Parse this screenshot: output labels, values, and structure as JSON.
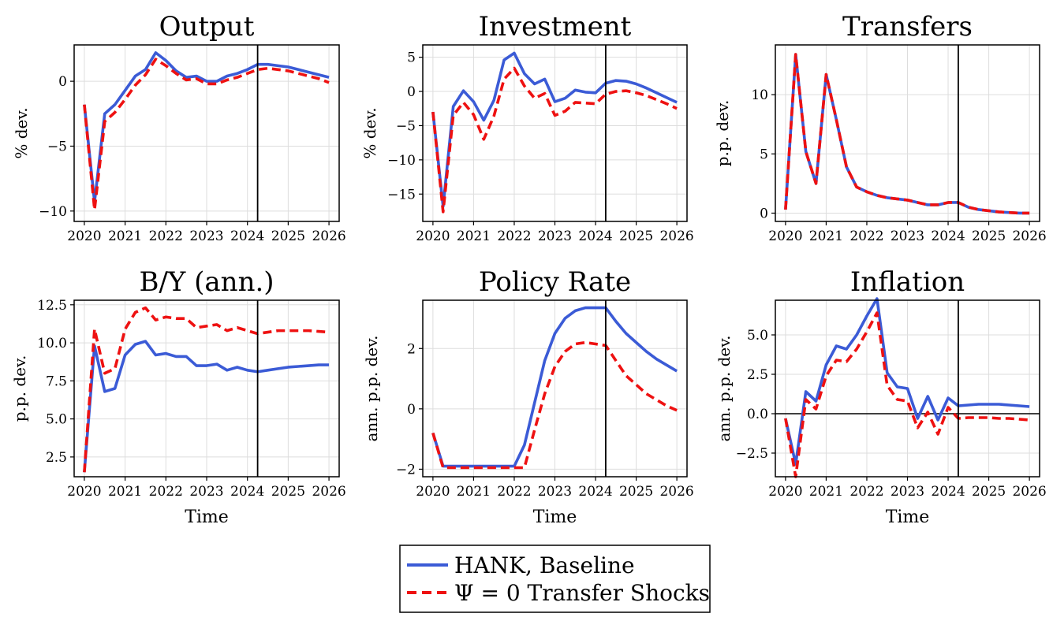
{
  "legend": {
    "baseline": "HANK, Baseline",
    "psi0": "Ψ = 0 Transfer Shocks"
  },
  "colors": {
    "baseline": "#3b5bd6",
    "psi0": "#ee1111",
    "axis": "#000000",
    "grid": "#dddddd"
  },
  "chart_data": [
    {
      "type": "line",
      "title": "Output",
      "xlabel": "",
      "ylabel": "% dev.",
      "xlim": [
        2019.75,
        2026.25
      ],
      "ylim": [
        -10.8,
        2.8
      ],
      "xticks": [
        2020,
        2021,
        2022,
        2023,
        2024,
        2025,
        2026
      ],
      "yticks": [
        -10,
        -5,
        0
      ],
      "ytick_labels": [
        "−10",
        "−5",
        "0"
      ],
      "vline": 2024.25,
      "hline": null,
      "grid": true,
      "x": [
        2020.0,
        2020.25,
        2020.5,
        2020.75,
        2021.0,
        2021.25,
        2021.5,
        2021.75,
        2022.0,
        2022.25,
        2022.5,
        2022.75,
        2023.0,
        2023.25,
        2023.5,
        2023.75,
        2024.0,
        2024.25,
        2024.5,
        2024.75,
        2025.0,
        2025.25,
        2025.5,
        2025.75,
        2026.0
      ],
      "series": [
        {
          "name": "HANK, Baseline",
          "style": "solid",
          "values": [
            -1.8,
            -9.3,
            -2.5,
            -1.8,
            -0.7,
            0.4,
            0.9,
            2.2,
            1.6,
            0.8,
            0.3,
            0.4,
            0.0,
            0.0,
            0.4,
            0.6,
            0.9,
            1.3,
            1.3,
            1.2,
            1.1,
            0.9,
            0.7,
            0.5,
            0.3
          ]
        },
        {
          "name": "Ψ = 0 Transfer Shocks",
          "style": "dashed",
          "values": [
            -1.8,
            -9.9,
            -3.1,
            -2.4,
            -1.4,
            -0.3,
            0.5,
            1.7,
            1.2,
            0.6,
            0.1,
            0.2,
            -0.2,
            -0.2,
            0.1,
            0.3,
            0.6,
            0.9,
            1.0,
            0.9,
            0.8,
            0.6,
            0.4,
            0.2,
            -0.1
          ]
        }
      ]
    },
    {
      "type": "line",
      "title": "Investment",
      "xlabel": "",
      "ylabel": "% dev.",
      "xlim": [
        2019.75,
        2026.25
      ],
      "ylim": [
        -19,
        6.8
      ],
      "xticks": [
        2020,
        2021,
        2022,
        2023,
        2024,
        2025,
        2026
      ],
      "yticks": [
        -15,
        -10,
        -5,
        0,
        5
      ],
      "ytick_labels": [
        "−15",
        "−10",
        "−5",
        "0",
        "5"
      ],
      "vline": 2024.25,
      "hline": null,
      "grid": true,
      "x": [
        2020.0,
        2020.25,
        2020.5,
        2020.75,
        2021.0,
        2021.25,
        2021.5,
        2021.75,
        2022.0,
        2022.25,
        2022.5,
        2022.75,
        2023.0,
        2023.25,
        2023.5,
        2023.75,
        2024.0,
        2024.25,
        2024.5,
        2024.75,
        2025.0,
        2025.25,
        2025.5,
        2025.75,
        2026.0
      ],
      "series": [
        {
          "name": "HANK, Baseline",
          "style": "solid",
          "values": [
            -3.0,
            -16.8,
            -2.2,
            0.1,
            -1.5,
            -4.2,
            -1.3,
            4.6,
            5.6,
            2.6,
            1.1,
            1.8,
            -1.5,
            -1.0,
            0.2,
            -0.1,
            -0.2,
            1.2,
            1.6,
            1.5,
            1.1,
            0.5,
            -0.2,
            -0.9,
            -1.6
          ]
        },
        {
          "name": "Ψ = 0 Transfer Shocks",
          "style": "dashed",
          "values": [
            -3.0,
            -17.6,
            -3.5,
            -1.6,
            -3.4,
            -7.0,
            -3.6,
            1.8,
            3.4,
            0.8,
            -1.0,
            -0.3,
            -3.5,
            -2.9,
            -1.6,
            -1.7,
            -1.8,
            -0.4,
            0.0,
            0.1,
            -0.2,
            -0.6,
            -1.2,
            -1.8,
            -2.5
          ]
        }
      ]
    },
    {
      "type": "line",
      "title": "Transfers",
      "xlabel": "",
      "ylabel": "p.p. dev.",
      "xlim": [
        2019.75,
        2026.25
      ],
      "ylim": [
        -0.7,
        14.2
      ],
      "xticks": [
        2020,
        2021,
        2022,
        2023,
        2024,
        2025,
        2026
      ],
      "yticks": [
        0,
        5,
        10
      ],
      "ytick_labels": [
        "0",
        "5",
        "10"
      ],
      "vline": 2024.25,
      "hline": null,
      "grid": true,
      "x": [
        2020.0,
        2020.25,
        2020.5,
        2020.75,
        2021.0,
        2021.25,
        2021.5,
        2021.75,
        2022.0,
        2022.25,
        2022.5,
        2022.75,
        2023.0,
        2023.25,
        2023.5,
        2023.75,
        2024.0,
        2024.25,
        2024.5,
        2024.75,
        2025.0,
        2025.25,
        2025.5,
        2025.75,
        2026.0
      ],
      "series": [
        {
          "name": "HANK, Baseline",
          "style": "solid",
          "values": [
            0.3,
            13.4,
            5.2,
            2.5,
            11.7,
            7.9,
            3.9,
            2.2,
            1.8,
            1.5,
            1.3,
            1.2,
            1.1,
            0.9,
            0.7,
            0.7,
            0.9,
            0.9,
            0.5,
            0.3,
            0.2,
            0.1,
            0.05,
            0.0,
            0.0
          ]
        },
        {
          "name": "Ψ = 0 Transfer Shocks",
          "style": "dashed",
          "values": [
            0.3,
            13.4,
            5.2,
            2.5,
            11.7,
            7.9,
            3.9,
            2.2,
            1.8,
            1.5,
            1.3,
            1.2,
            1.1,
            0.9,
            0.7,
            0.7,
            0.9,
            0.9,
            0.5,
            0.3,
            0.2,
            0.1,
            0.05,
            0.0,
            0.0
          ]
        }
      ]
    },
    {
      "type": "line",
      "title": "B/Y (ann.)",
      "xlabel": "Time",
      "ylabel": "p.p. dev.",
      "xlim": [
        2019.75,
        2026.25
      ],
      "ylim": [
        1.2,
        12.8
      ],
      "xticks": [
        2020,
        2021,
        2022,
        2023,
        2024,
        2025,
        2026
      ],
      "yticks": [
        2.5,
        5.0,
        7.5,
        10.0,
        12.5
      ],
      "ytick_labels": [
        "2.5",
        "5.0",
        "7.5",
        "10.0",
        "12.5"
      ],
      "vline": 2024.25,
      "hline": null,
      "grid": true,
      "x": [
        2020.0,
        2020.25,
        2020.5,
        2020.75,
        2021.0,
        2021.25,
        2021.5,
        2021.75,
        2022.0,
        2022.25,
        2022.5,
        2022.75,
        2023.0,
        2023.25,
        2023.5,
        2023.75,
        2024.0,
        2024.25,
        2024.5,
        2024.75,
        2025.0,
        2025.25,
        2025.5,
        2025.75,
        2026.0
      ],
      "series": [
        {
          "name": "HANK, Baseline",
          "style": "solid",
          "values": [
            1.5,
            9.8,
            6.8,
            7.0,
            9.2,
            9.9,
            10.1,
            9.2,
            9.3,
            9.1,
            9.1,
            8.5,
            8.5,
            8.6,
            8.2,
            8.4,
            8.2,
            8.1,
            8.2,
            8.3,
            8.4,
            8.45,
            8.5,
            8.55,
            8.55
          ]
        },
        {
          "name": "Ψ = 0 Transfer Shocks",
          "style": "dashed",
          "values": [
            1.5,
            10.9,
            8.0,
            8.3,
            10.9,
            12.0,
            12.3,
            11.5,
            11.7,
            11.6,
            11.6,
            11.0,
            11.1,
            11.2,
            10.8,
            11.0,
            10.8,
            10.6,
            10.7,
            10.8,
            10.8,
            10.8,
            10.8,
            10.75,
            10.7
          ]
        }
      ]
    },
    {
      "type": "line",
      "title": "Policy Rate",
      "xlabel": "Time",
      "ylabel": "ann. p.p. dev.",
      "xlim": [
        2019.75,
        2026.25
      ],
      "ylim": [
        -2.25,
        3.6
      ],
      "xticks": [
        2020,
        2021,
        2022,
        2023,
        2024,
        2025,
        2026
      ],
      "yticks": [
        -2,
        0,
        2
      ],
      "ytick_labels": [
        "−2",
        "0",
        "2"
      ],
      "vline": 2024.25,
      "hline": null,
      "grid": true,
      "x": [
        2020.0,
        2020.25,
        2020.5,
        2020.75,
        2021.0,
        2021.25,
        2021.5,
        2021.75,
        2022.0,
        2022.25,
        2022.5,
        2022.75,
        2023.0,
        2023.25,
        2023.5,
        2023.75,
        2024.0,
        2024.25,
        2024.5,
        2024.75,
        2025.0,
        2025.25,
        2025.5,
        2025.75,
        2026.0
      ],
      "series": [
        {
          "name": "HANK, Baseline",
          "style": "solid",
          "values": [
            -0.8,
            -1.9,
            -1.9,
            -1.9,
            -1.9,
            -1.9,
            -1.9,
            -1.9,
            -1.9,
            -1.2,
            0.2,
            1.6,
            2.5,
            3.0,
            3.25,
            3.35,
            3.35,
            3.35,
            2.9,
            2.5,
            2.2,
            1.9,
            1.65,
            1.45,
            1.25
          ]
        },
        {
          "name": "Ψ = 0 Transfer Shocks",
          "style": "dashed",
          "values": [
            -0.8,
            -1.95,
            -1.95,
            -1.95,
            -1.95,
            -1.95,
            -1.95,
            -1.95,
            -1.95,
            -1.95,
            -0.7,
            0.5,
            1.4,
            1.9,
            2.15,
            2.2,
            2.15,
            2.1,
            1.6,
            1.1,
            0.8,
            0.5,
            0.3,
            0.1,
            -0.05
          ]
        }
      ]
    },
    {
      "type": "line",
      "title": "Inflation",
      "xlabel": "Time",
      "ylabel": "ann. p.p. dev.",
      "xlim": [
        2019.75,
        2026.25
      ],
      "ylim": [
        -4.0,
        7.2
      ],
      "xticks": [
        2020,
        2021,
        2022,
        2023,
        2024,
        2025,
        2026
      ],
      "yticks": [
        -2.5,
        0.0,
        2.5,
        5.0
      ],
      "ytick_labels": [
        "−2.5",
        "0.0",
        "2.5",
        "5.0"
      ],
      "vline": 2024.25,
      "hline": 0,
      "grid": true,
      "x": [
        2020.0,
        2020.25,
        2020.5,
        2020.75,
        2021.0,
        2021.25,
        2021.5,
        2021.75,
        2022.0,
        2022.25,
        2022.5,
        2022.75,
        2023.0,
        2023.25,
        2023.5,
        2023.75,
        2024.0,
        2024.25,
        2024.5,
        2024.75,
        2025.0,
        2025.25,
        2025.5,
        2025.75,
        2026.0
      ],
      "series": [
        {
          "name": "HANK, Baseline",
          "style": "solid",
          "values": [
            -0.3,
            -3.2,
            1.4,
            0.8,
            3.1,
            4.3,
            4.1,
            5.0,
            6.2,
            7.3,
            2.6,
            1.7,
            1.6,
            -0.3,
            1.1,
            -0.4,
            1.0,
            0.5,
            0.55,
            0.6,
            0.6,
            0.6,
            0.55,
            0.5,
            0.45
          ]
        },
        {
          "name": "Ψ = 0 Transfer Shocks",
          "style": "dashed",
          "values": [
            -0.3,
            -4.0,
            0.9,
            0.3,
            2.4,
            3.4,
            3.3,
            4.1,
            5.2,
            6.4,
            1.8,
            0.9,
            0.8,
            -0.9,
            0.1,
            -1.3,
            0.4,
            -0.3,
            -0.25,
            -0.25,
            -0.25,
            -0.3,
            -0.3,
            -0.35,
            -0.4
          ]
        }
      ]
    }
  ]
}
